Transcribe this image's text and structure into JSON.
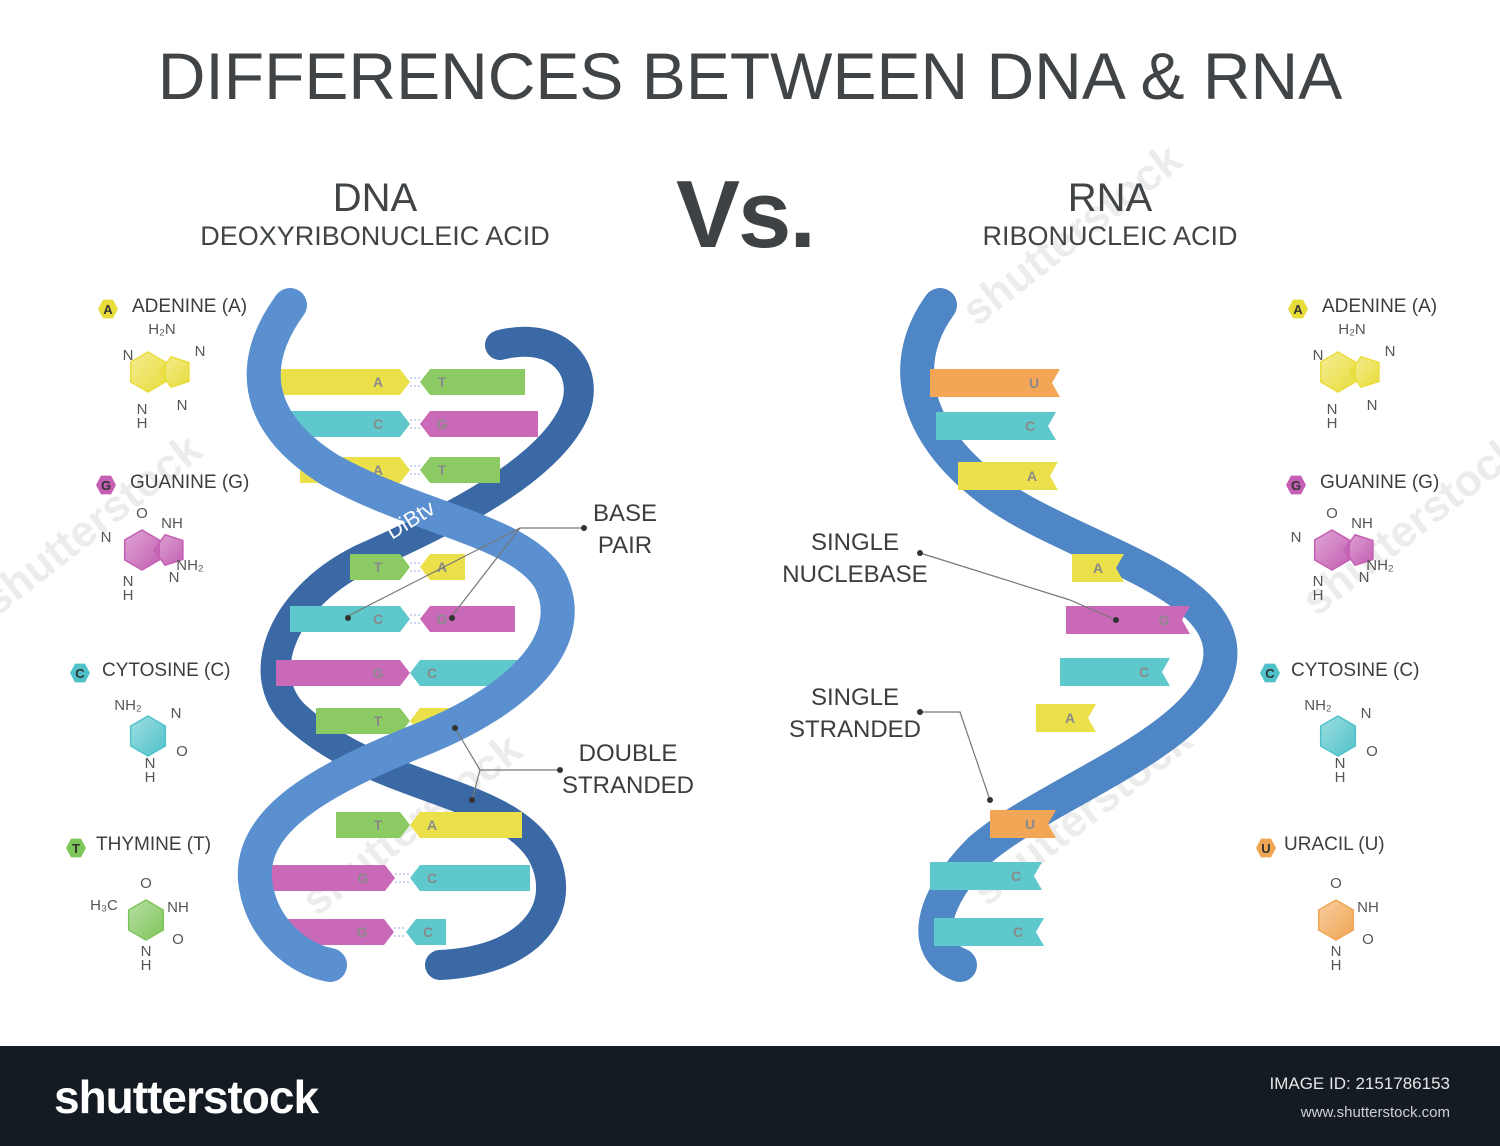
{
  "title": "DIFFERENCES BETWEEN DNA & RNA",
  "vs": "Vs.",
  "dna": {
    "heading": "DNA",
    "subheading": "DEOXYRIBONUCLEIC ACID"
  },
  "rna": {
    "heading": "RNA",
    "subheading": "RIBONUCLEIC ACID"
  },
  "dna_bases": [
    {
      "letter": "A",
      "name": "ADENINE (A)",
      "color": "#e9dd3c"
    },
    {
      "letter": "G",
      "name": "GUANINE (G)",
      "color": "#c45fb3"
    },
    {
      "letter": "C",
      "name": "CYTOSINE (C)",
      "color": "#4fc2c9"
    },
    {
      "letter": "T",
      "name": "THYMINE (T)",
      "color": "#7ec55a"
    }
  ],
  "rna_bases": [
    {
      "letter": "A",
      "name": "ADENINE (A)",
      "color": "#e9dd3c"
    },
    {
      "letter": "G",
      "name": "GUANINE (G)",
      "color": "#c45fb3"
    },
    {
      "letter": "C",
      "name": "CYTOSINE (C)",
      "color": "#4fc2c9"
    },
    {
      "letter": "U",
      "name": "URACIL (U)",
      "color": "#f0a553"
    }
  ],
  "chem": {
    "h2n": "H₂N",
    "n": "N",
    "h": "H",
    "o": "O",
    "nh": "NH",
    "nh2": "NH₂",
    "h3c": "H₃C"
  },
  "annotations": {
    "base_pair": [
      "BASE",
      "PAIR"
    ],
    "double_stranded": [
      "DOUBLE",
      "STRANDED"
    ],
    "single_nucleobase": [
      "SINGLE",
      "NUCLEBASE"
    ],
    "single_stranded": [
      "SINGLE",
      "STRANDED"
    ]
  },
  "dna_pairs": [
    {
      "left": "A",
      "right": "T"
    },
    {
      "left": "C",
      "right": "G"
    },
    {
      "left": "A",
      "right": "T"
    },
    {
      "left": "T",
      "right": "A"
    },
    {
      "left": "C",
      "right": "G"
    },
    {
      "left": "G",
      "right": "C"
    },
    {
      "left": "T",
      "right": "A"
    },
    {
      "left": "T",
      "right": "A"
    },
    {
      "left": "G",
      "right": "C"
    },
    {
      "left": "G",
      "right": "C"
    }
  ],
  "rna_rungs": [
    "U",
    "C",
    "A",
    "A",
    "G",
    "C",
    "A",
    "U",
    "C",
    "C"
  ],
  "strand_label": "DiBtv",
  "colors": {
    "A": "#ece04a",
    "T": "#8ccb63",
    "C": "#5ec8cd",
    "G": "#c969b8",
    "U": "#f2a656",
    "strand": "#4f86c6",
    "strand_dark": "#3a69a6"
  },
  "footer": {
    "brand": "shutterstock",
    "image_id": "IMAGE ID: 2151786153",
    "url": "www.shutterstock.com"
  },
  "watermark": "shutterstock"
}
